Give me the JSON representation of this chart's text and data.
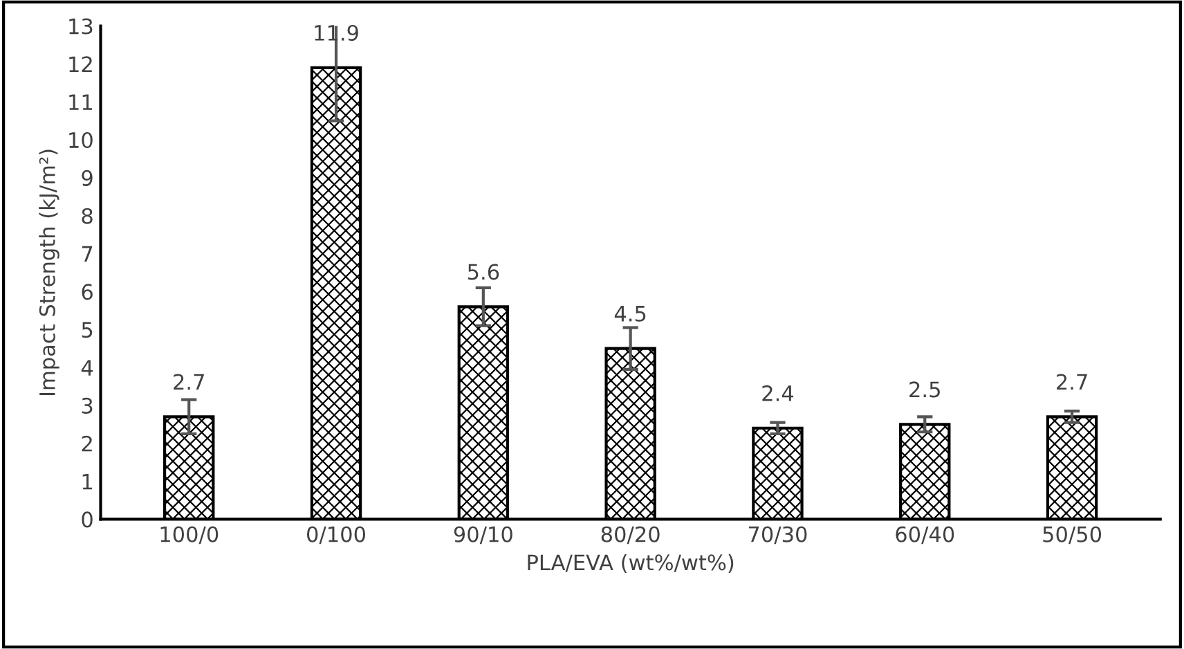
{
  "chart_data": {
    "type": "bar",
    "xlabel": "PLA/EVA (wt%/wt%)",
    "ylabel": "Impact Strength (kJ/m²)",
    "categories": [
      "100/0",
      "0/100",
      "90/10",
      "80/20",
      "70/30",
      "60/40",
      "50/50"
    ],
    "values": [
      2.7,
      11.9,
      5.6,
      4.5,
      2.4,
      2.5,
      2.7
    ],
    "errors": [
      0.45,
      1.4,
      0.5,
      0.55,
      0.15,
      0.2,
      0.15
    ],
    "color": "#000000",
    "data_labels": true,
    "ylim": [
      0,
      13
    ],
    "yticks": [
      0,
      1,
      2,
      3,
      4,
      5,
      6,
      7,
      8,
      9,
      10,
      11,
      12,
      13
    ],
    "grid": false,
    "legend": false
  }
}
